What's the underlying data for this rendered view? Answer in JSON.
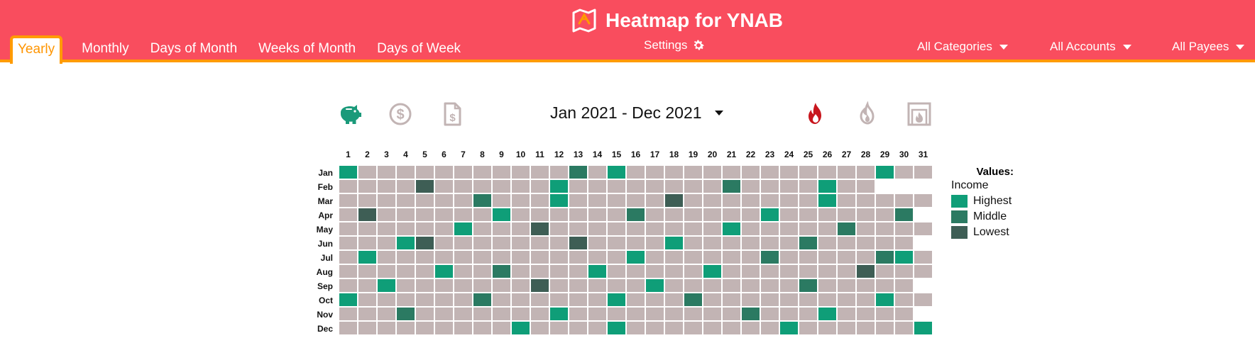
{
  "header": {
    "title": "Heatmap for YNAB",
    "tabs": [
      "Yearly",
      "Monthly",
      "Days of Month",
      "Weeks of Month",
      "Days of Week"
    ],
    "active_tab": "Yearly",
    "settings_label": "Settings",
    "filters": {
      "categories": "All Categories",
      "accounts": "All Accounts",
      "payees": "All Payees"
    }
  },
  "toolbar": {
    "date_range": "Jan 2021 - Dec 2021",
    "left_icons": [
      "piggy-bank-icon",
      "dollar-circle-icon",
      "dollar-document-icon"
    ],
    "right_icons": [
      "fire-icon",
      "fire-outline-icon",
      "fireplace-icon"
    ]
  },
  "colors": {
    "header_bg": "#f94d5e",
    "accent": "#ff9b00",
    "empty": "#c2b4b4",
    "highest": "#0f9e78",
    "middle": "#2b7a62",
    "lowest": "#3e5e55",
    "icon_green": "#1a9a7a",
    "icon_muted": "#c2b4b4",
    "fire_red": "#c8161d"
  },
  "heatmap": {
    "days": [
      1,
      2,
      3,
      4,
      5,
      6,
      7,
      8,
      9,
      10,
      11,
      12,
      13,
      14,
      15,
      16,
      17,
      18,
      19,
      20,
      21,
      22,
      23,
      24,
      25,
      26,
      27,
      28,
      29,
      30,
      31
    ],
    "months": [
      "Jan",
      "Feb",
      "Mar",
      "Apr",
      "May",
      "Jun",
      "Jul",
      "Aug",
      "Sep",
      "Oct",
      "Nov",
      "Dec"
    ],
    "days_in_month": [
      31,
      28,
      31,
      30,
      31,
      30,
      31,
      31,
      30,
      31,
      30,
      31
    ],
    "cells": [
      {
        "month": "Jan",
        "day": 1,
        "level": "highest"
      },
      {
        "month": "Jan",
        "day": 13,
        "level": "middle"
      },
      {
        "month": "Jan",
        "day": 15,
        "level": "highest"
      },
      {
        "month": "Jan",
        "day": 29,
        "level": "highest"
      },
      {
        "month": "Feb",
        "day": 5,
        "level": "lowest"
      },
      {
        "month": "Feb",
        "day": 12,
        "level": "highest"
      },
      {
        "month": "Feb",
        "day": 21,
        "level": "middle"
      },
      {
        "month": "Feb",
        "day": 26,
        "level": "highest"
      },
      {
        "month": "Mar",
        "day": 8,
        "level": "middle"
      },
      {
        "month": "Mar",
        "day": 12,
        "level": "highest"
      },
      {
        "month": "Mar",
        "day": 18,
        "level": "lowest"
      },
      {
        "month": "Mar",
        "day": 26,
        "level": "highest"
      },
      {
        "month": "Apr",
        "day": 2,
        "level": "lowest"
      },
      {
        "month": "Apr",
        "day": 9,
        "level": "highest"
      },
      {
        "month": "Apr",
        "day": 16,
        "level": "middle"
      },
      {
        "month": "Apr",
        "day": 23,
        "level": "highest"
      },
      {
        "month": "Apr",
        "day": 30,
        "level": "middle"
      },
      {
        "month": "May",
        "day": 7,
        "level": "highest"
      },
      {
        "month": "May",
        "day": 11,
        "level": "lowest"
      },
      {
        "month": "May",
        "day": 21,
        "level": "highest"
      },
      {
        "month": "May",
        "day": 27,
        "level": "middle"
      },
      {
        "month": "Jun",
        "day": 4,
        "level": "highest"
      },
      {
        "month": "Jun",
        "day": 5,
        "level": "lowest"
      },
      {
        "month": "Jun",
        "day": 13,
        "level": "lowest"
      },
      {
        "month": "Jun",
        "day": 18,
        "level": "highest"
      },
      {
        "month": "Jun",
        "day": 25,
        "level": "middle"
      },
      {
        "month": "Jul",
        "day": 2,
        "level": "highest"
      },
      {
        "month": "Jul",
        "day": 16,
        "level": "highest"
      },
      {
        "month": "Jul",
        "day": 23,
        "level": "middle"
      },
      {
        "month": "Jul",
        "day": 29,
        "level": "middle"
      },
      {
        "month": "Jul",
        "day": 30,
        "level": "highest"
      },
      {
        "month": "Aug",
        "day": 6,
        "level": "highest"
      },
      {
        "month": "Aug",
        "day": 9,
        "level": "middle"
      },
      {
        "month": "Aug",
        "day": 14,
        "level": "highest"
      },
      {
        "month": "Aug",
        "day": 20,
        "level": "highest"
      },
      {
        "month": "Aug",
        "day": 28,
        "level": "lowest"
      },
      {
        "month": "Sep",
        "day": 3,
        "level": "highest"
      },
      {
        "month": "Sep",
        "day": 11,
        "level": "lowest"
      },
      {
        "month": "Sep",
        "day": 17,
        "level": "highest"
      },
      {
        "month": "Sep",
        "day": 25,
        "level": "middle"
      },
      {
        "month": "Oct",
        "day": 1,
        "level": "highest"
      },
      {
        "month": "Oct",
        "day": 8,
        "level": "middle"
      },
      {
        "month": "Oct",
        "day": 15,
        "level": "highest"
      },
      {
        "month": "Oct",
        "day": 19,
        "level": "middle"
      },
      {
        "month": "Oct",
        "day": 29,
        "level": "highest"
      },
      {
        "month": "Nov",
        "day": 4,
        "level": "middle"
      },
      {
        "month": "Nov",
        "day": 12,
        "level": "highest"
      },
      {
        "month": "Nov",
        "day": 22,
        "level": "middle"
      },
      {
        "month": "Nov",
        "day": 26,
        "level": "highest"
      },
      {
        "month": "Dec",
        "day": 10,
        "level": "highest"
      },
      {
        "month": "Dec",
        "day": 15,
        "level": "highest"
      },
      {
        "month": "Dec",
        "day": 24,
        "level": "highest"
      },
      {
        "month": "Dec",
        "day": 31,
        "level": "highest"
      }
    ]
  },
  "legend": {
    "title": "Values:",
    "subtitle": "Income",
    "items": [
      {
        "label": "Highest",
        "color": "#0f9e78"
      },
      {
        "label": "Middle",
        "color": "#2b7a62"
      },
      {
        "label": "Lowest",
        "color": "#3e5e55"
      }
    ]
  }
}
